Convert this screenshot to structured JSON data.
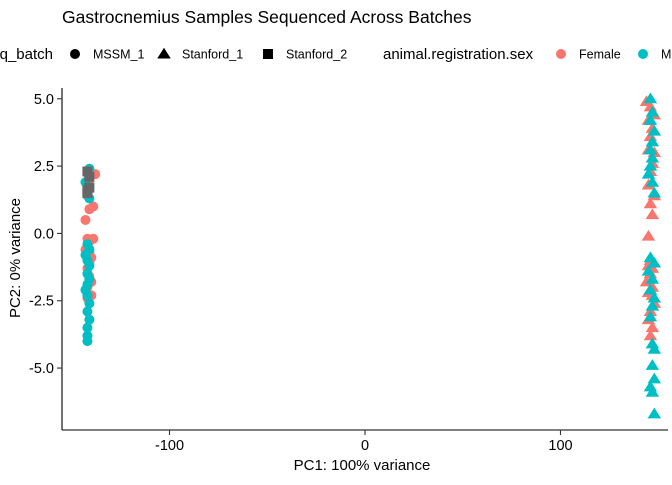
{
  "chart_data": {
    "type": "scatter",
    "title": "Gastrocnemius Samples Sequenced Across Batches",
    "xlabel": "PC1: 100% variance",
    "ylabel": "PC2: 0% variance",
    "xlim": [
      -155,
      155
    ],
    "ylim": [
      -7.3,
      5.4
    ],
    "x_ticks": [
      -100,
      0,
      100
    ],
    "x_tick_labels": [
      "-100",
      "0",
      "100"
    ],
    "y_ticks": [
      -5,
      -2.5,
      0,
      2.5,
      5
    ],
    "y_tick_labels": [
      "-5.0",
      "-2.5",
      "0.0",
      "2.5",
      "5.0"
    ],
    "grid": false,
    "legend_position": "top",
    "legends": [
      {
        "title": "q_batch",
        "aesthetic": "shape",
        "entries": [
          {
            "label": "MSSM_1",
            "shape": "circle"
          },
          {
            "label": "Stanford_1",
            "shape": "triangle"
          },
          {
            "label": "Stanford_2",
            "shape": "square"
          }
        ]
      },
      {
        "title": "animal.registration.sex",
        "aesthetic": "color",
        "entries": [
          {
            "label": "Female",
            "color": "#F8766D"
          },
          {
            "label": "M",
            "color": "#00BFC4"
          }
        ]
      }
    ],
    "colors": {
      "female": "#F8766D",
      "male": "#00BFC4",
      "stanford2": "#666666"
    },
    "series": [
      {
        "shape": "circle",
        "color": "#F8766D",
        "x": [
          -138,
          -141,
          -142,
          -139,
          -141,
          -143,
          -142,
          -139,
          -141,
          -143,
          -141,
          -140,
          -142,
          -141,
          -140,
          -142,
          -140,
          -142,
          -141
        ],
        "y": [
          2.2,
          1.8,
          1.4,
          1.0,
          0.9,
          0.5,
          -0.2,
          -0.2,
          -0.3,
          -0.6,
          -0.7,
          -0.9,
          -1.3,
          -1.6,
          -1.8,
          -2.0,
          -2.3,
          -2.4,
          -1.1
        ]
      },
      {
        "shape": "circle",
        "color": "#00BFC4",
        "x": [
          -141,
          -142,
          -141,
          -143,
          -142,
          -141,
          -142,
          -141,
          -143,
          -142,
          -141,
          -142,
          -141,
          -142,
          -143,
          -142,
          -141,
          -142,
          -141,
          -142,
          -142,
          -142
        ],
        "y": [
          2.4,
          2.3,
          2.1,
          1.9,
          1.6,
          1.3,
          -0.4,
          -0.6,
          -0.8,
          -1.0,
          -1.2,
          -1.5,
          -1.7,
          -1.9,
          -2.1,
          -2.3,
          -2.6,
          -2.9,
          -3.2,
          -3.5,
          -3.8,
          -4.0
        ]
      },
      {
        "shape": "square",
        "color": "#666666",
        "x": [
          -142,
          -141,
          -141,
          -142,
          -142
        ],
        "y": [
          2.3,
          2.1,
          1.7,
          1.6,
          1.5
        ]
      },
      {
        "shape": "triangle",
        "color": "#F8766D",
        "x": [
          144,
          146,
          148,
          145,
          147,
          146,
          145,
          148,
          147,
          146,
          145,
          148,
          146,
          147,
          145,
          146,
          147,
          146,
          144,
          147,
          145,
          148,
          146,
          145,
          147,
          146,
          145,
          147
        ],
        "y": [
          4.9,
          4.7,
          4.4,
          4.2,
          3.9,
          3.6,
          3.1,
          3.0,
          2.6,
          2.3,
          1.8,
          1.4,
          1.1,
          0.7,
          -0.1,
          -1.0,
          -1.3,
          -1.5,
          -1.8,
          -2.0,
          -2.2,
          -2.6,
          -2.9,
          -3.2,
          -3.5,
          -3.8,
          -1.2,
          -2.3
        ]
      },
      {
        "shape": "triangle",
        "color": "#00BFC4",
        "x": [
          146,
          147,
          146,
          148,
          147,
          146,
          147,
          146,
          145,
          147,
          148,
          146,
          145,
          147,
          146,
          148,
          147,
          146,
          147,
          148,
          147,
          148,
          146,
          147,
          148,
          148
        ],
        "y": [
          5.0,
          4.5,
          4.2,
          3.8,
          3.4,
          3.1,
          2.8,
          2.5,
          2.2,
          1.9,
          1.5,
          -0.9,
          -1.4,
          -1.7,
          -2.1,
          -2.4,
          -2.7,
          -3.1,
          -4.1,
          -4.3,
          -4.9,
          -5.4,
          -5.7,
          -5.9,
          -6.7,
          -1.1
        ]
      }
    ]
  }
}
